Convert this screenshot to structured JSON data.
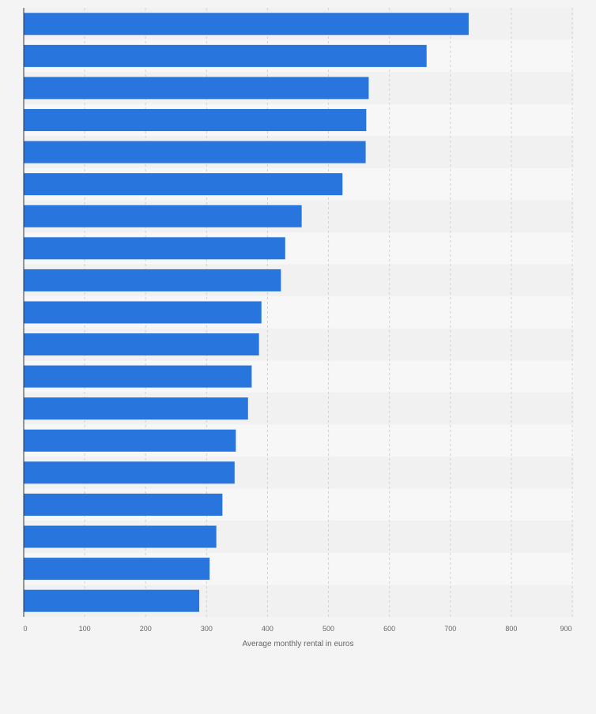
{
  "chart_data": {
    "type": "bar",
    "orientation": "horizontal",
    "title": "",
    "xlabel": "Average monthly rental in euros",
    "ylabel": "",
    "xlim": [
      0,
      900
    ],
    "x_ticks": [
      "0",
      "100",
      "200",
      "300",
      "400",
      "500",
      "600",
      "700",
      "800",
      "900"
    ],
    "categories": [
      "",
      "",
      "",
      "",
      "",
      "",
      "",
      "",
      "",
      "",
      "",
      "",
      "",
      "",
      "",
      "",
      "",
      "",
      ""
    ],
    "values": [
      730,
      661,
      566,
      562,
      561,
      523,
      456,
      429,
      422,
      390,
      386,
      374,
      368,
      348,
      346,
      326,
      316,
      305,
      288
    ],
    "grid": true,
    "legend": "none"
  },
  "colors": {
    "bar": "#2876dd",
    "band_light": "#f7f7f7",
    "band_dark": "#f1f1f1",
    "grid": "#d2d2d2",
    "axis": "#333333",
    "text": "#666666"
  }
}
